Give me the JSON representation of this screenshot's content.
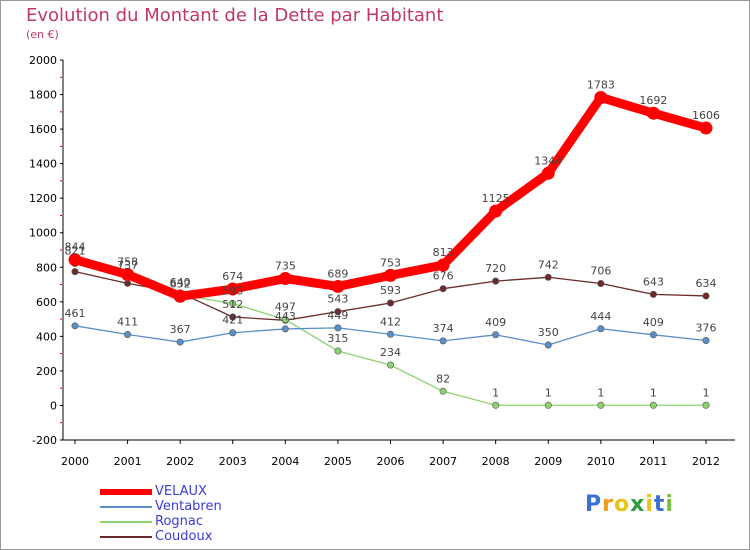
{
  "title": "Evolution du Montant de la Dette par Habitant",
  "subtitle": "(en €)",
  "logo_text": "Proxiti",
  "chart_data": {
    "type": "line",
    "title": "Evolution du Montant de la Dette par Habitant",
    "subtitle": "(en €)",
    "xlabel": "",
    "ylabel": "",
    "x": [
      "2000",
      "2001",
      "2002",
      "2003",
      "2004",
      "2005",
      "2006",
      "2007",
      "2008",
      "2009",
      "2010",
      "2011",
      "2012"
    ],
    "ylim": [
      -200,
      2000
    ],
    "yticks": [
      "-200",
      "0",
      "200",
      "400",
      "600",
      "800",
      "1000",
      "1200",
      "1400",
      "1600",
      "1800",
      "2000"
    ],
    "grid": false,
    "legend_position": "bottom-left",
    "series": [
      {
        "name": "VELAUX",
        "color": "#ff0000",
        "values": [
          844,
          758,
          632,
          674,
          735,
          689,
          753,
          813,
          1125,
          1344,
          1783,
          1692,
          1606
        ],
        "labels": [
          "844",
          "758",
          "632",
          "674",
          "735",
          "689",
          "753",
          "813",
          "1125",
          "1344",
          "1783",
          "1692",
          "1606"
        ]
      },
      {
        "name": "Ventabren",
        "color": "#5a8fc8",
        "values": [
          461,
          411,
          367,
          421,
          443,
          449,
          412,
          374,
          409,
          350,
          444,
          409,
          376
        ],
        "labels": [
          "461",
          "411",
          "367",
          "421",
          "443",
          "449",
          "412",
          "374",
          "409",
          "350",
          "444",
          "409",
          "376"
        ]
      },
      {
        "name": "Rognac",
        "color": "#8ed16f",
        "values": [
          821,
          737,
          640,
          590,
          497,
          315,
          234,
          82,
          1,
          1,
          1,
          1,
          1
        ],
        "labels": [
          "821",
          "737",
          "640",
          "590",
          "497",
          "315",
          "234",
          "82",
          "1",
          "1",
          "1",
          "1",
          "1"
        ]
      },
      {
        "name": "Coudoux",
        "color": "#6b2b2b",
        "values": [
          775,
          707,
          652,
          512,
          493,
          543,
          593,
          676,
          720,
          742,
          706,
          643,
          634
        ],
        "labels": [
          "",
          "",
          "",
          "512",
          "",
          "543",
          "593",
          "676",
          "720",
          "742",
          "706",
          "643",
          "634"
        ]
      }
    ]
  }
}
